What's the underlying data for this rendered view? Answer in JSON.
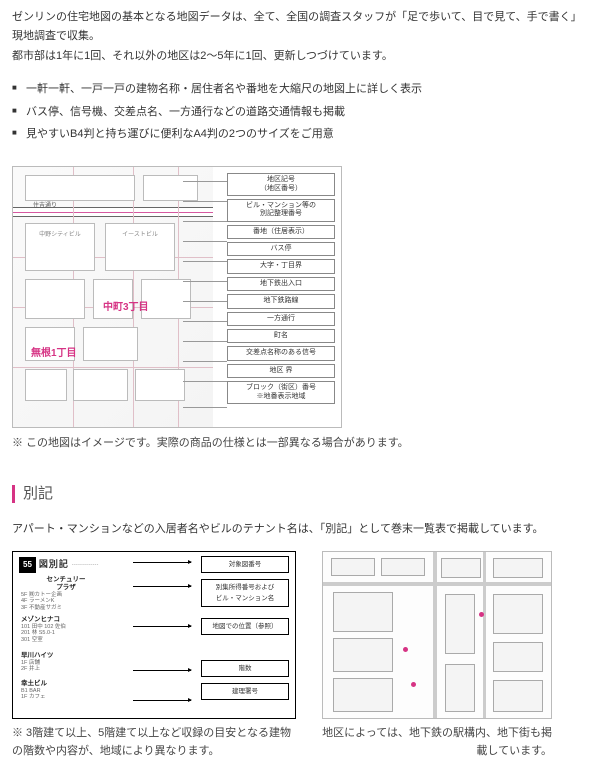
{
  "intro": {
    "line1": "ゼンリンの住宅地図の基本となる地図データは、全て、全国の調査スタッフが「足で歩いて、目で見て、手で書く」現地調査で収集。",
    "line2": "都市部は1年に1回、それ以外の地区は2〜5年に1回、更新しつづけています。"
  },
  "bullets": [
    "一軒一軒、一戸一戸の建物名称・居住者名や番地を大縮尺の地図上に詳しく表示",
    "バス停、信号機、交差点名、一方通行などの道路交通情報も掲載",
    "見やすいB4判と持ち運びに便利なA4判の2つのサイズをご用意"
  ],
  "map": {
    "district1": "中町3丁目",
    "district2": "無根1丁目",
    "streetLabel": "住吉通り",
    "bldg1": "中野シティビル",
    "bldg2": "イーストビル",
    "legend": [
      "地区記号\n（地区番号）",
      "ビル・マンション等の\n別記整理番号",
      "番地（住居表示）",
      "バス停",
      "大字・丁目界",
      "地下鉄出入口",
      "地下鉄路線",
      "一方通行",
      "町名",
      "交差点名称のある信号",
      "地区 界",
      "ブロック（街区）番号\n※地番表示地域"
    ],
    "note": "※ この地図はイメージです。実際の商品の仕様とは一部異なる場合があります。"
  },
  "section": {
    "title": "別記",
    "desc": "アパート・マンションなどの入居者名やビルのテナント名は、「別記」として巻末一覧表で掲載しています。"
  },
  "bekki": {
    "headerNum": "55",
    "headerTitle": "図別記",
    "dash": "- - - - - - - - - - - - -",
    "entries": [
      {
        "bldg": "センチュリー\nプラザ",
        "sub": "5F ㈱カトー企画\n4F ラーメンK\n3F 不動産サガミ"
      },
      {
        "bldg": "メゾンヒナコ",
        "sub": "101 田中  102 佐伯\n201 林   S5.0-1\n301 空室"
      },
      {
        "bldg": "早川ハイツ",
        "sub": "1F 店舗\n2F 井上"
      },
      {
        "bldg": "幸土ビル",
        "sub": "B1 BAR\n1F カフェ"
      }
    ],
    "legends": {
      "top1": "対象図番号",
      "top2": "別集所得番号および\nビル・マンション名",
      "mid1": "地図での位置（参照）",
      "bot1": "階数",
      "bot2": "建理署号"
    },
    "note": "※ 3階建て以上、5階建て以上など収録の目安となる建物の階数や内容が、地域により異なります。"
  },
  "station": {
    "note": "地区によっては、地下鉄の駅構内、地下街も掲載しています。"
  },
  "colors": {
    "accent": "#d63384",
    "border": "#bbbbbb",
    "text": "#333333"
  }
}
